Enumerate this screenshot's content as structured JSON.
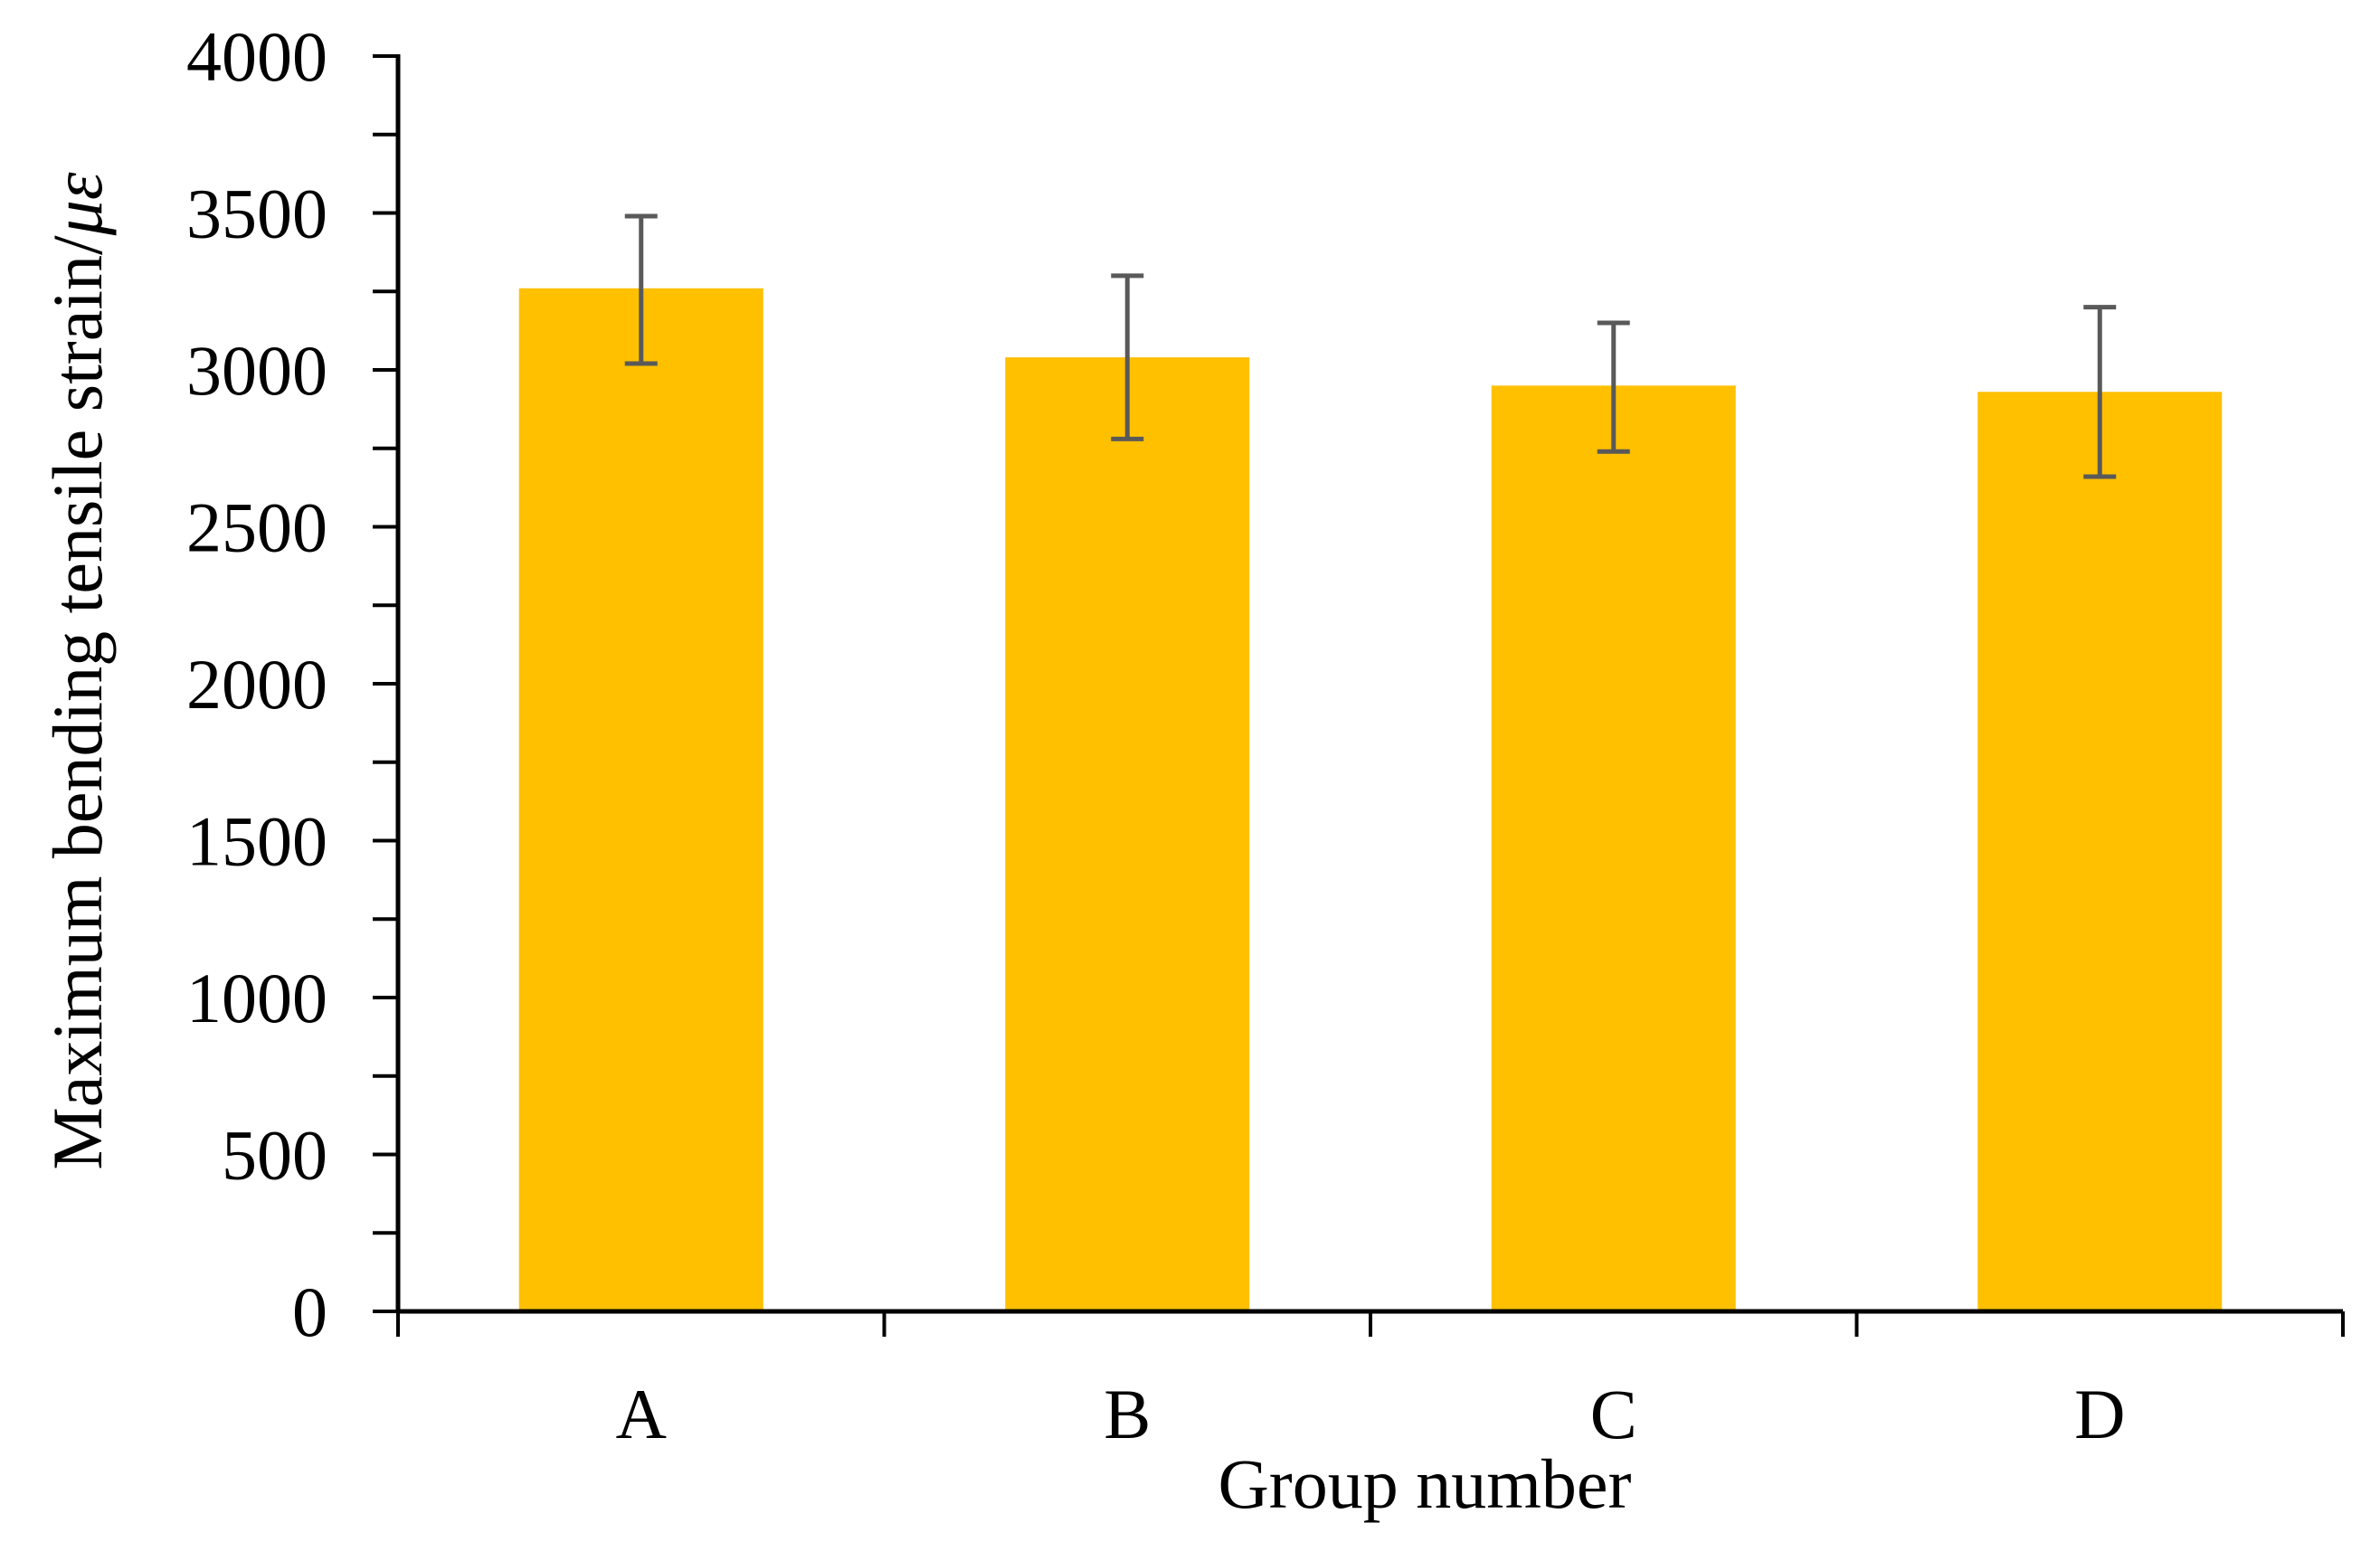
{
  "chart_data": {
    "type": "bar",
    "title": "",
    "xlabel": "Group number",
    "ylabel_main": "Maximum bending tensile strain/",
    "ylabel_unit": "με",
    "categories": [
      "A",
      "B",
      "C",
      "D"
    ],
    "values": [
      3260,
      3040,
      2950,
      2930
    ],
    "error_low": [
      3020,
      2780,
      2740,
      2660
    ],
    "error_high": [
      3490,
      3300,
      3150,
      3200
    ],
    "ylim": [
      0,
      4000
    ],
    "yticks": [
      0,
      500,
      1000,
      1500,
      2000,
      2500,
      3000,
      3500,
      4000
    ],
    "ytick_labels": [
      "0",
      "500",
      "1000",
      "1500",
      "2000",
      "2500",
      "3000",
      "3500",
      "4000"
    ],
    "minor_tick_step": 250,
    "grid": false,
    "legend": "none",
    "colors": {
      "bar": "#FFC000",
      "error_bar": "#595959",
      "axis": "#000000"
    }
  }
}
